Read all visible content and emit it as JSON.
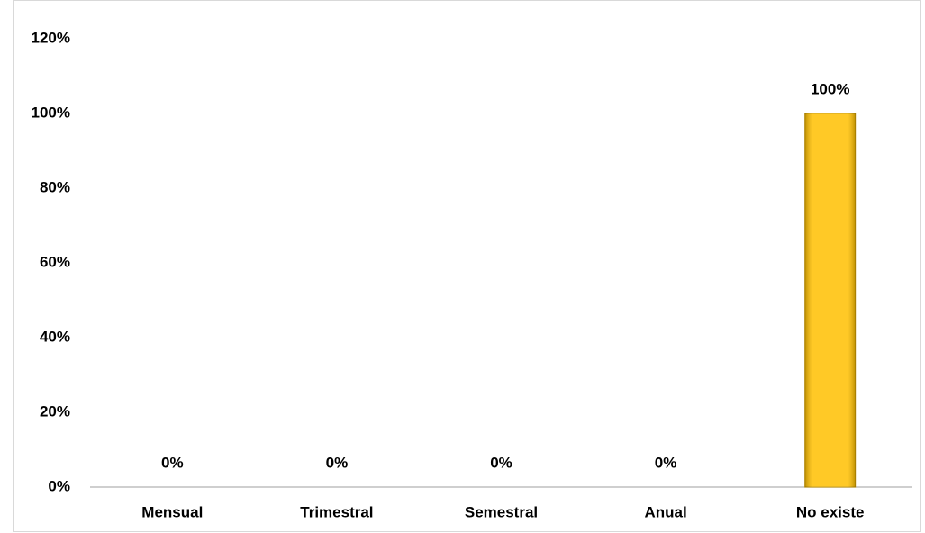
{
  "chart_data": {
    "type": "bar",
    "categories": [
      "Mensual",
      "Trimestral",
      "Semestral",
      "Anual",
      "No existe"
    ],
    "values": [
      0,
      0,
      0,
      0,
      100
    ],
    "value_labels": [
      "0%",
      "0%",
      "0%",
      "0%",
      "100%"
    ],
    "color": "#ffc000",
    "ylim": [
      0,
      120
    ],
    "yticks": [
      {
        "value": 0,
        "label": "0%"
      },
      {
        "value": 20,
        "label": "20%"
      },
      {
        "value": 40,
        "label": "40%"
      },
      {
        "value": 60,
        "label": "60%"
      },
      {
        "value": 80,
        "label": "80%"
      },
      {
        "value": 100,
        "label": "100%"
      },
      {
        "value": 120,
        "label": "120%"
      }
    ],
    "grid": false
  }
}
